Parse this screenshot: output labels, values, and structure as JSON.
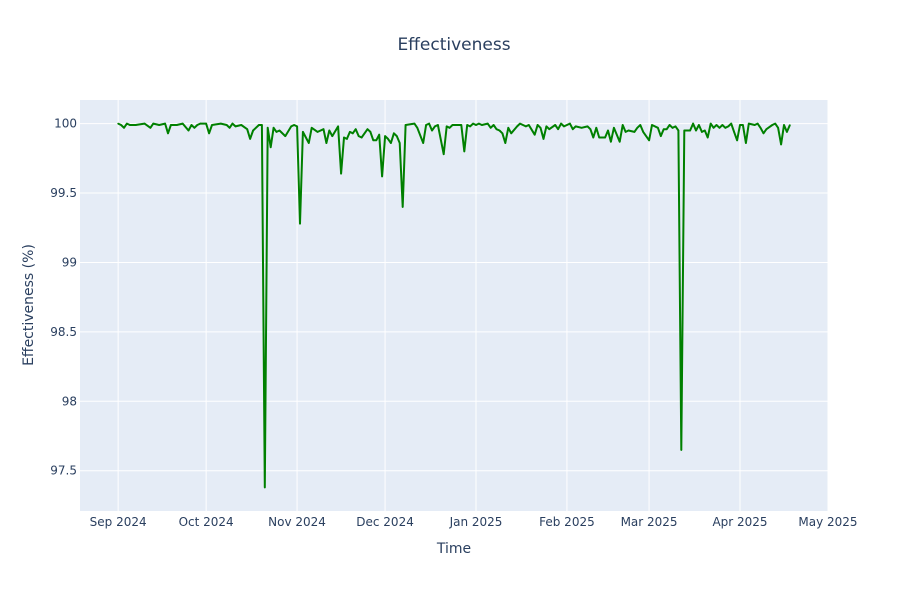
{
  "chart_data": {
    "type": "line",
    "title": "Effectiveness",
    "xlabel": "Time",
    "ylabel": "Effectiveness (%)",
    "xlim": [
      "2024-08-19",
      "2025-05-01"
    ],
    "ylim": [
      97.21,
      100.17
    ],
    "x_ticks": [
      {
        "date": "2024-09-01",
        "label": "Sep 2024"
      },
      {
        "date": "2024-10-01",
        "label": "Oct 2024"
      },
      {
        "date": "2024-11-01",
        "label": "Nov 2024"
      },
      {
        "date": "2024-12-01",
        "label": "Dec 2024"
      },
      {
        "date": "2025-01-01",
        "label": "Jan 2025"
      },
      {
        "date": "2025-02-01",
        "label": "Feb 2025"
      },
      {
        "date": "2025-03-01",
        "label": "Mar 2025"
      },
      {
        "date": "2025-04-01",
        "label": "Apr 2025"
      },
      {
        "date": "2025-05-01",
        "label": "May 2025"
      }
    ],
    "y_ticks": [
      {
        "value": 97.5,
        "label": "97.5"
      },
      {
        "value": 98,
        "label": "98"
      },
      {
        "value": 98.5,
        "label": "98.5"
      },
      {
        "value": 99,
        "label": "99"
      },
      {
        "value": 99.5,
        "label": "99.5"
      },
      {
        "value": 100,
        "label": "100"
      }
    ],
    "grid": true,
    "colors": {
      "line": "#008000",
      "plot_bg": "#e5ecf6",
      "grid": "#ffffff"
    },
    "series": [
      {
        "x": [
          "2024-09-01",
          "2024-09-02",
          "2024-09-03",
          "2024-09-04",
          "2024-09-05",
          "2024-09-07",
          "2024-09-10",
          "2024-09-12",
          "2024-09-13",
          "2024-09-15",
          "2024-09-17",
          "2024-09-18",
          "2024-09-19",
          "2024-09-21",
          "2024-09-23",
          "2024-09-25",
          "2024-09-26",
          "2024-09-27",
          "2024-09-28",
          "2024-09-29",
          "2024-10-01",
          "2024-10-02",
          "2024-10-03",
          "2024-10-06",
          "2024-10-08",
          "2024-10-09",
          "2024-10-10",
          "2024-10-11",
          "2024-10-13",
          "2024-10-15",
          "2024-10-16",
          "2024-10-17",
          "2024-10-19",
          "2024-10-20",
          "2024-10-21",
          "2024-10-22",
          "2024-10-23",
          "2024-10-24",
          "2024-10-25",
          "2024-10-26",
          "2024-10-28",
          "2024-10-30",
          "2024-10-31",
          "2024-11-01",
          "2024-11-02",
          "2024-11-03",
          "2024-11-05",
          "2024-11-06",
          "2024-11-08",
          "2024-11-10",
          "2024-11-11",
          "2024-11-12",
          "2024-11-13",
          "2024-11-15",
          "2024-11-16",
          "2024-11-17",
          "2024-11-18",
          "2024-11-19",
          "2024-11-20",
          "2024-11-21",
          "2024-11-22",
          "2024-11-23",
          "2024-11-25",
          "2024-11-26",
          "2024-11-27",
          "2024-11-28",
          "2024-11-29",
          "2024-11-30",
          "2024-12-01",
          "2024-12-02",
          "2024-12-03",
          "2024-12-04",
          "2024-12-05",
          "2024-12-06",
          "2024-12-07",
          "2024-12-08",
          "2024-12-11",
          "2024-12-12",
          "2024-12-14",
          "2024-12-15",
          "2024-12-16",
          "2024-12-17",
          "2024-12-18",
          "2024-12-19",
          "2024-12-21",
          "2024-12-22",
          "2024-12-23",
          "2024-12-24",
          "2024-12-26",
          "2024-12-27",
          "2024-12-28",
          "2024-12-29",
          "2024-12-30",
          "2024-12-31",
          "2025-01-01",
          "2025-01-02",
          "2025-01-03",
          "2025-01-05",
          "2025-01-06",
          "2025-01-07",
          "2025-01-08",
          "2025-01-09",
          "2025-01-10",
          "2025-01-11",
          "2025-01-12",
          "2025-01-13",
          "2025-01-15",
          "2025-01-16",
          "2025-01-18",
          "2025-01-19",
          "2025-01-21",
          "2025-01-22",
          "2025-01-23",
          "2025-01-24",
          "2025-01-25",
          "2025-01-26",
          "2025-01-28",
          "2025-01-29",
          "2025-01-30",
          "2025-01-31",
          "2025-02-02",
          "2025-02-03",
          "2025-02-04",
          "2025-02-06",
          "2025-02-08",
          "2025-02-09",
          "2025-02-10",
          "2025-02-11",
          "2025-02-12",
          "2025-02-14",
          "2025-02-15",
          "2025-02-16",
          "2025-02-17",
          "2025-02-19",
          "2025-02-20",
          "2025-02-21",
          "2025-02-22",
          "2025-02-24",
          "2025-02-25",
          "2025-02-26",
          "2025-02-27",
          "2025-03-01",
          "2025-03-02",
          "2025-03-04",
          "2025-03-05",
          "2025-03-06",
          "2025-03-07",
          "2025-03-08",
          "2025-03-09",
          "2025-03-10",
          "2025-03-11",
          "2025-03-12",
          "2025-03-13",
          "2025-03-15",
          "2025-03-16",
          "2025-03-17",
          "2025-03-18",
          "2025-03-19",
          "2025-03-20",
          "2025-03-21",
          "2025-03-22",
          "2025-03-23",
          "2025-03-24",
          "2025-03-25",
          "2025-03-26",
          "2025-03-27",
          "2025-03-28",
          "2025-03-29",
          "2025-03-30",
          "2025-03-31",
          "2025-04-01",
          "2025-04-02",
          "2025-04-03",
          "2025-04-04",
          "2025-04-06",
          "2025-04-07",
          "2025-04-08",
          "2025-04-09",
          "2025-04-10",
          "2025-04-12",
          "2025-04-13",
          "2025-04-14",
          "2025-04-15",
          "2025-04-16",
          "2025-04-17",
          "2025-04-18"
        ],
        "y": [
          100.0,
          99.99,
          99.97,
          100.0,
          99.99,
          99.99,
          100.0,
          99.97,
          100.0,
          99.99,
          100.0,
          99.93,
          99.99,
          99.99,
          100.0,
          99.95,
          99.99,
          99.97,
          99.99,
          100.0,
          100.0,
          99.93,
          99.99,
          100.0,
          99.99,
          99.97,
          100.0,
          99.98,
          99.99,
          99.96,
          99.89,
          99.95,
          99.99,
          99.99,
          97.38,
          99.97,
          99.83,
          99.97,
          99.94,
          99.95,
          99.91,
          99.98,
          99.99,
          99.98,
          99.28,
          99.94,
          99.86,
          99.97,
          99.94,
          99.96,
          99.86,
          99.95,
          99.91,
          99.98,
          99.64,
          99.9,
          99.89,
          99.94,
          99.93,
          99.96,
          99.91,
          99.9,
          99.96,
          99.94,
          99.88,
          99.88,
          99.92,
          99.62,
          99.91,
          99.89,
          99.86,
          99.93,
          99.91,
          99.86,
          99.4,
          99.99,
          100.0,
          99.97,
          99.86,
          99.99,
          100.0,
          99.95,
          99.98,
          99.99,
          99.78,
          99.98,
          99.97,
          99.99,
          99.99,
          99.99,
          99.8,
          99.99,
          99.98,
          100.0,
          99.99,
          100.0,
          99.99,
          100.0,
          99.97,
          99.99,
          99.96,
          99.95,
          99.93,
          99.86,
          99.97,
          99.93,
          99.98,
          100.0,
          99.98,
          99.99,
          99.92,
          99.99,
          99.97,
          99.89,
          99.98,
          99.96,
          99.99,
          99.96,
          100.0,
          99.98,
          100.0,
          99.96,
          99.98,
          99.97,
          99.98,
          99.96,
          99.9,
          99.97,
          99.9,
          99.9,
          99.95,
          99.87,
          99.97,
          99.87,
          99.99,
          99.94,
          99.95,
          99.94,
          99.97,
          99.99,
          99.94,
          99.88,
          99.99,
          99.97,
          99.91,
          99.96,
          99.96,
          99.99,
          99.97,
          99.98,
          99.95,
          97.65,
          99.95,
          99.95,
          100.0,
          99.95,
          99.99,
          99.94,
          99.95,
          99.9,
          100.0,
          99.97,
          99.99,
          99.97,
          99.99,
          99.97,
          99.98,
          100.0,
          99.94,
          99.88,
          99.99,
          99.99,
          99.86,
          100.0,
          99.99,
          100.0,
          99.97,
          99.93,
          99.96,
          99.99,
          100.0,
          99.97,
          99.85,
          99.99,
          99.94,
          99.99
        ]
      }
    ]
  }
}
